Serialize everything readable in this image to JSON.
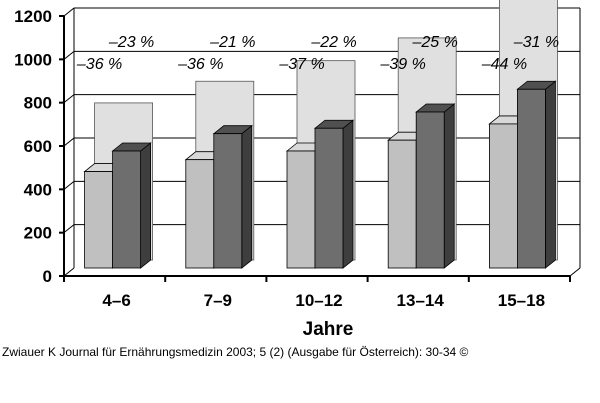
{
  "chart_data": {
    "type": "bar",
    "title": "",
    "xlabel": "Jahre",
    "ylabel": "",
    "ylim": [
      0,
      1200
    ],
    "yticks": [
      "0",
      "200",
      "400",
      "600",
      "800",
      "1000",
      "1200"
    ],
    "grid": true,
    "categories": [
      "4–6",
      "7–9",
      "10–12",
      "13–14",
      "15–18"
    ],
    "series": [
      {
        "values": [
          725,
          825,
          920,
          1025,
          1220
        ]
      },
      {
        "values": [
          445,
          500,
          540,
          590,
          665
        ]
      },
      {
        "values": [
          540,
          620,
          645,
          720,
          825
        ]
      }
    ],
    "annotations": {
      "lower": [
        "–36 %",
        "–36 %",
        "–37 %",
        "–39 %",
        "–44 %"
      ],
      "upper": [
        "–23 %",
        "–21 %",
        "–22 %",
        "–25 %",
        "–31 %"
      ]
    },
    "colors": {
      "reference_face": "#e0e0e0",
      "light_face": "#c0c0c0",
      "light_side": "#8c8c8c",
      "light_top": "#d8d8d8",
      "dark_face": "#6e6e6e",
      "dark_side": "#3e3e3e",
      "dark_top": "#505050"
    }
  },
  "caption": "Zwiauer K Journal für Ernährungsmedizin 2003; 5 (2) (Ausgabe für Österreich): 30-34 ©"
}
